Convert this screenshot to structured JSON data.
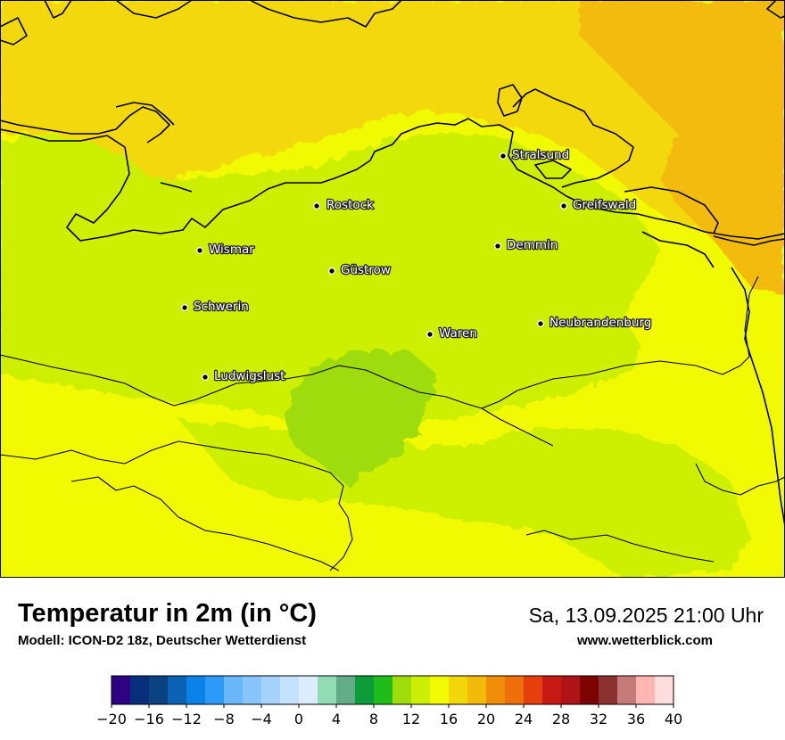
{
  "header": {
    "title": "Temperatur in 2m (in °C)",
    "model": "Modell: ICON-D2 18z, Deutscher Wetterdienst",
    "datetime": "Sa, 13.09.2025 21:00 Uhr",
    "website": "www.wetterblick.com"
  },
  "cities": [
    {
      "name": "Stralsund"
    },
    {
      "name": "Rostock"
    },
    {
      "name": "Greifswald"
    },
    {
      "name": "Wismar"
    },
    {
      "name": "Demmin"
    },
    {
      "name": "Güstrow"
    },
    {
      "name": "Schwerin"
    },
    {
      "name": "Neubrandenburg"
    },
    {
      "name": "Waren"
    },
    {
      "name": "Ludwigslust"
    }
  ],
  "legend": {
    "unit": "°C",
    "colors": [
      "#2e0282",
      "#08307a",
      "#094181",
      "#0b62b4",
      "#0b82e8",
      "#2c9af7",
      "#6bb7fb",
      "#87c5fb",
      "#a5d3fc",
      "#c3e2fc",
      "#dbecfd",
      "#8fdcb5",
      "#62ad87",
      "#0e9b3a",
      "#1fbd1c",
      "#9edc0b",
      "#cdef06",
      "#f1fa00",
      "#f2d80b",
      "#f2bb0a",
      "#f08d0a",
      "#ef700a",
      "#e63e0d",
      "#c81a14",
      "#ae1316",
      "#7d0303",
      "#8b312f",
      "#c77a7a",
      "#ffb6b3",
      "#ffdddd"
    ],
    "tick_labels": [
      "−20",
      "−16",
      "−12",
      "−8",
      "−4",
      "0",
      "4",
      "8",
      "12",
      "16",
      "20",
      "24",
      "28",
      "32",
      "36",
      "40"
    ]
  }
}
